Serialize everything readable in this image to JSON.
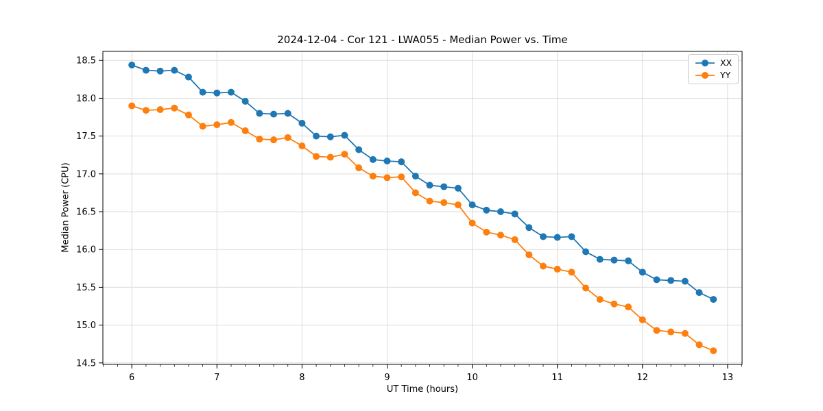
{
  "chart_data": {
    "type": "line",
    "title": "2024-12-04 - Cor 121 - LWA055 - Median Power vs. Time",
    "xlabel": "UT Time (hours)",
    "ylabel": "Median Power (CPU)",
    "xlim": [
      5.66,
      13.17
    ],
    "ylim": [
      14.48,
      18.62
    ],
    "x_ticks": [
      6,
      7,
      8,
      9,
      10,
      11,
      12,
      13
    ],
    "y_ticks": [
      14.5,
      15.0,
      15.5,
      16.0,
      16.5,
      17.0,
      17.5,
      18.0,
      18.5
    ],
    "x_minor_tick_step": 0.166667,
    "grid": true,
    "legend_position": "upper right",
    "x": [
      6.0,
      6.1667,
      6.3333,
      6.5,
      6.6667,
      6.8333,
      7.0,
      7.1667,
      7.3333,
      7.5,
      7.6667,
      7.8333,
      8.0,
      8.1667,
      8.3333,
      8.5,
      8.6667,
      8.8333,
      9.0,
      9.1667,
      9.3333,
      9.5,
      9.6667,
      9.8333,
      10.0,
      10.1667,
      10.3333,
      10.5,
      10.6667,
      10.8333,
      11.0,
      11.1667,
      11.3333,
      11.5,
      11.6667,
      11.8333,
      12.0,
      12.1667,
      12.3333,
      12.5,
      12.6667,
      12.8333
    ],
    "series": [
      {
        "name": "XX",
        "color": "#1f77b4",
        "values": [
          18.44,
          18.37,
          18.36,
          18.37,
          18.28,
          18.08,
          18.07,
          18.08,
          17.96,
          17.8,
          17.79,
          17.8,
          17.67,
          17.5,
          17.49,
          17.51,
          17.32,
          17.19,
          17.17,
          17.16,
          16.97,
          16.85,
          16.83,
          16.81,
          16.59,
          16.52,
          16.5,
          16.47,
          16.29,
          16.17,
          16.16,
          16.17,
          15.97,
          15.87,
          15.86,
          15.85,
          15.7,
          15.6,
          15.59,
          15.58,
          15.43,
          15.34
        ]
      },
      {
        "name": "YY",
        "color": "#ff7f0e",
        "values": [
          17.9,
          17.84,
          17.85,
          17.87,
          17.78,
          17.63,
          17.65,
          17.68,
          17.57,
          17.46,
          17.45,
          17.48,
          17.37,
          17.23,
          17.22,
          17.26,
          17.08,
          16.97,
          16.95,
          16.96,
          16.75,
          16.64,
          16.62,
          16.59,
          16.35,
          16.23,
          16.19,
          16.13,
          15.93,
          15.78,
          15.74,
          15.7,
          15.49,
          15.34,
          15.28,
          15.24,
          15.07,
          14.93,
          14.91,
          14.89,
          14.74,
          14.66
        ]
      }
    ],
    "grid_color": "#dcdcdc",
    "spine_color": "#000000",
    "text_color": "#000000"
  }
}
